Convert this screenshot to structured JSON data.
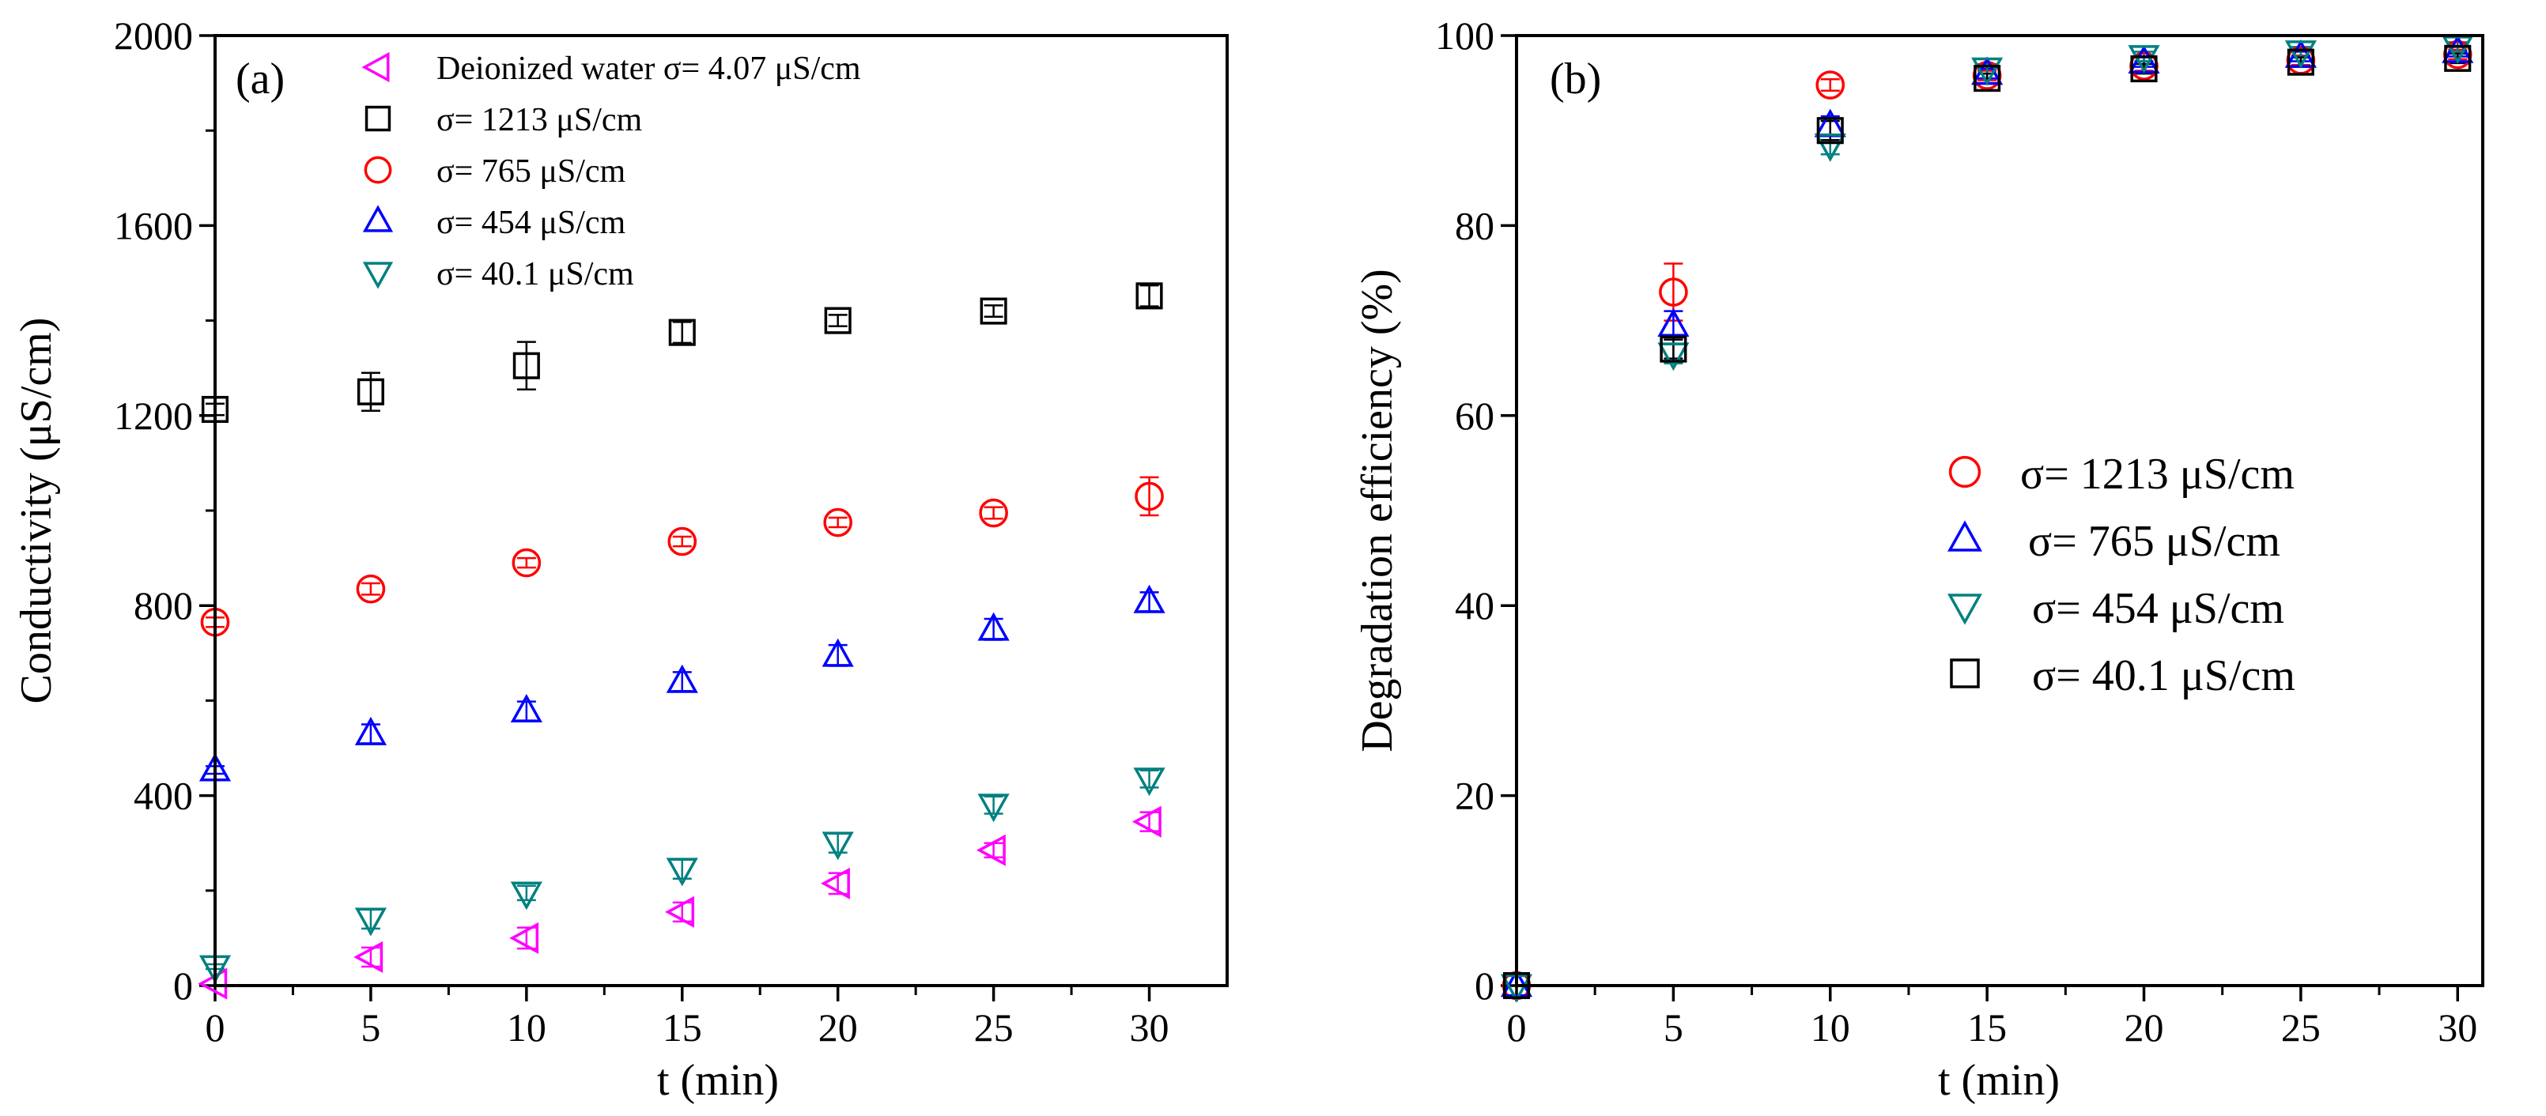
{
  "chart_data": [
    {
      "panel": "(a)",
      "type": "scatter",
      "xlabel": "t (min)",
      "ylabel": "Conductivity (μS/cm)",
      "xlim": [
        0,
        32.5
      ],
      "ylim": [
        0,
        2000
      ],
      "xticks": [
        0,
        5,
        10,
        15,
        20,
        25,
        30
      ],
      "yticks": [
        0,
        400,
        800,
        1200,
        1600,
        2000
      ],
      "legend_position": "top-center",
      "series": [
        {
          "name": "Deionized water σ= 4.07 μS/cm",
          "marker": "triangle-left",
          "color": "#FF00FF",
          "x": [
            0,
            5,
            10,
            15,
            20,
            25,
            30
          ],
          "y": [
            4,
            60,
            100,
            155,
            215,
            285,
            345
          ],
          "err": [
            0,
            20,
            22,
            20,
            22,
            15,
            20
          ]
        },
        {
          "name": "σ= 1213 μS/cm",
          "marker": "square",
          "color": "#000000",
          "x": [
            0,
            5,
            10,
            15,
            20,
            25,
            30
          ],
          "y": [
            1213,
            1250,
            1305,
            1375,
            1400,
            1420,
            1452
          ],
          "err": [
            12,
            40,
            50,
            22,
            12,
            12,
            22
          ]
        },
        {
          "name": "σ= 765 μS/cm",
          "marker": "circle",
          "color": "#FF0000",
          "x": [
            0,
            5,
            10,
            15,
            20,
            25,
            30
          ],
          "y": [
            765,
            835,
            890,
            935,
            975,
            995,
            1030
          ],
          "err": [
            10,
            12,
            10,
            10,
            10,
            12,
            40
          ]
        },
        {
          "name": "σ= 454 μS/cm",
          "marker": "triangle-up",
          "color": "#0000FF",
          "x": [
            0,
            5,
            10,
            15,
            20,
            25,
            30
          ],
          "y": [
            454,
            530,
            578,
            640,
            695,
            750,
            808
          ],
          "err": [
            8,
            20,
            20,
            20,
            22,
            22,
            20
          ]
        },
        {
          "name": "σ= 40.1 μS/cm",
          "marker": "triangle-down",
          "color": "#008080",
          "x": [
            0,
            5,
            10,
            15,
            20,
            25,
            30
          ],
          "y": [
            40,
            140,
            195,
            245,
            300,
            380,
            435
          ],
          "err": [
            5,
            20,
            15,
            20,
            20,
            18,
            18
          ]
        }
      ]
    },
    {
      "panel": "(b)",
      "type": "scatter",
      "xlabel": "t (min)",
      "ylabel": "Degradation efficiency (%)",
      "xlim": [
        0,
        30.8
      ],
      "ylim": [
        0,
        100
      ],
      "xticks": [
        0,
        5,
        10,
        15,
        20,
        25,
        30
      ],
      "yticks": [
        0,
        20,
        40,
        60,
        80,
        100
      ],
      "legend_position": "center-right",
      "series": [
        {
          "name": "σ= 1213 μS/cm",
          "marker": "circle",
          "color": "#FF0000",
          "x": [
            0,
            5,
            10,
            15,
            20,
            25,
            30
          ],
          "y": [
            0,
            73,
            94.8,
            95.8,
            96.8,
            97.4,
            98.0
          ],
          "err": [
            0,
            3,
            0.6,
            0.5,
            0.5,
            0.5,
            0.5
          ]
        },
        {
          "name": "σ= 765 μS/cm",
          "marker": "triangle-up",
          "color": "#0000FF",
          "x": [
            0,
            5,
            10,
            15,
            20,
            25,
            30
          ],
          "y": [
            0,
            69.5,
            90.5,
            96.0,
            97.2,
            97.8,
            98.3
          ],
          "err": [
            0,
            1.5,
            1,
            0.5,
            0.5,
            0.5,
            0.5
          ]
        },
        {
          "name": "σ= 454 μS/cm",
          "marker": "triangle-down",
          "color": "#008080",
          "x": [
            0,
            5,
            10,
            15,
            20,
            25,
            30
          ],
          "y": [
            0,
            66.5,
            88.5,
            96.5,
            97.8,
            98.3,
            98.8
          ],
          "err": [
            0,
            1,
            1,
            0.5,
            0.5,
            0.5,
            0.5
          ]
        },
        {
          "name": "σ= 40.1 μS/cm",
          "marker": "square",
          "color": "#000000",
          "x": [
            0,
            5,
            10,
            15,
            20,
            25,
            30
          ],
          "y": [
            0,
            67,
            90,
            95.5,
            96.5,
            97.2,
            97.6
          ],
          "err": [
            0,
            1,
            1,
            0.5,
            0.5,
            0.5,
            0.5
          ]
        }
      ]
    }
  ]
}
